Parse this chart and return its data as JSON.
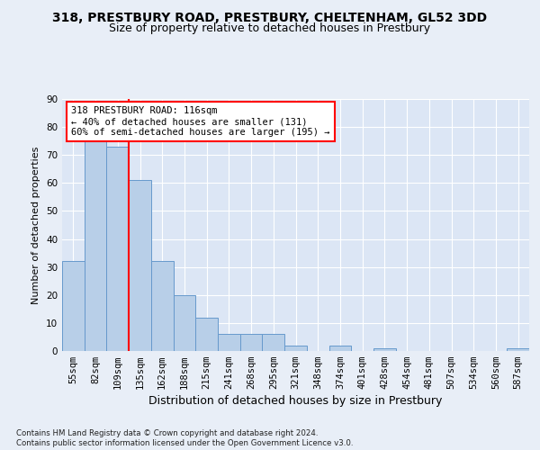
{
  "title1": "318, PRESTBURY ROAD, PRESTBURY, CHELTENHAM, GL52 3DD",
  "title2": "Size of property relative to detached houses in Prestbury",
  "xlabel": "Distribution of detached houses by size in Prestbury",
  "ylabel": "Number of detached properties",
  "footnote": "Contains HM Land Registry data © Crown copyright and database right 2024.\nContains public sector information licensed under the Open Government Licence v3.0.",
  "categories": [
    "55sqm",
    "82sqm",
    "109sqm",
    "135sqm",
    "162sqm",
    "188sqm",
    "215sqm",
    "241sqm",
    "268sqm",
    "295sqm",
    "321sqm",
    "348sqm",
    "374sqm",
    "401sqm",
    "428sqm",
    "454sqm",
    "481sqm",
    "507sqm",
    "534sqm",
    "560sqm",
    "587sqm"
  ],
  "values": [
    32,
    76,
    73,
    61,
    32,
    20,
    12,
    6,
    6,
    6,
    2,
    0,
    2,
    0,
    1,
    0,
    0,
    0,
    0,
    0,
    1
  ],
  "bar_color": "#b8cfe8",
  "bar_edge_color": "#6699cc",
  "highlight_bar_index": 2,
  "highlight_color": "red",
  "annotation_line1": "318 PRESTBURY ROAD: 116sqm",
  "annotation_line2": "← 40% of detached houses are smaller (131)",
  "annotation_line3": "60% of semi-detached houses are larger (195) →",
  "annotation_box_color": "white",
  "annotation_box_edge": "red",
  "ylim": [
    0,
    90
  ],
  "yticks": [
    0,
    10,
    20,
    30,
    40,
    50,
    60,
    70,
    80,
    90
  ],
  "bg_color": "#e8eef7",
  "plot_bg_color": "#dce6f5",
  "grid_color": "white",
  "title1_fontsize": 10,
  "title2_fontsize": 9,
  "xlabel_fontsize": 9,
  "ylabel_fontsize": 8,
  "tick_fontsize": 7.5,
  "annotation_fontsize": 7.5
}
